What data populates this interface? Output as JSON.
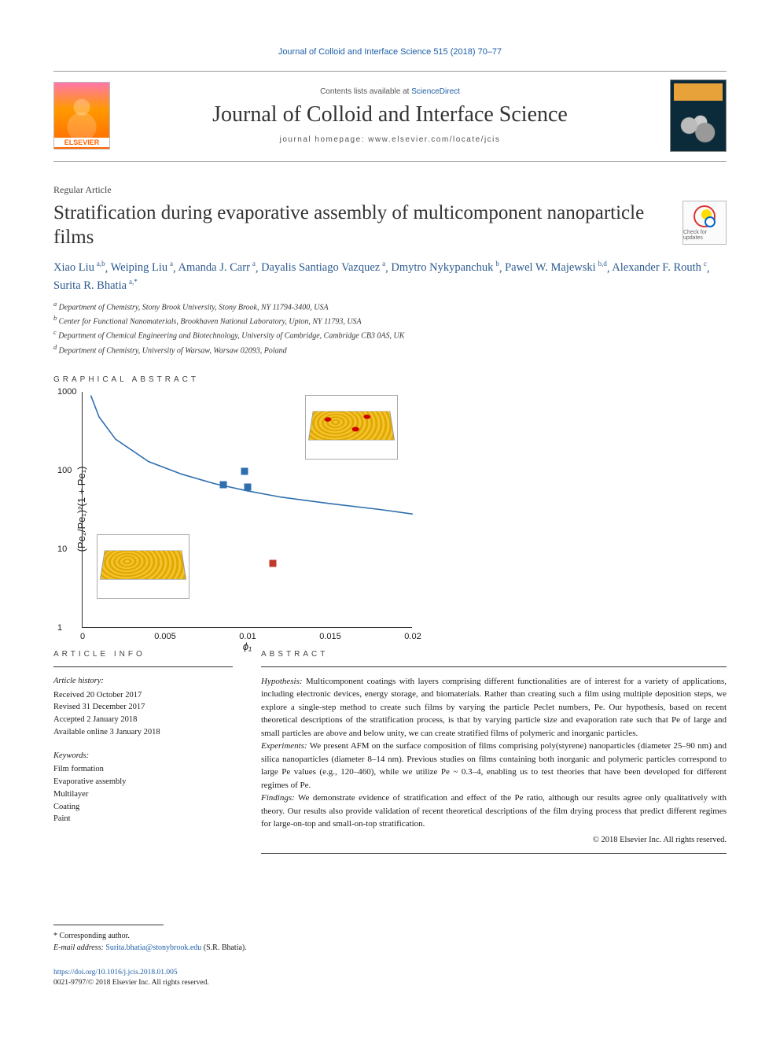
{
  "running_head": "Journal of Colloid and Interface Science 515 (2018) 70–77",
  "masthead": {
    "contents_prefix": "Contents lists available at ",
    "contents_link": "ScienceDirect",
    "journal_title": "Journal of Colloid and Interface Science",
    "homepage_prefix": "journal homepage: ",
    "homepage_url": "www.elsevier.com/locate/jcis",
    "publisher_word": "ELSEVIER"
  },
  "article_type": "Regular Article",
  "title": "Stratification during evaporative assembly of multicomponent nanoparticle films",
  "crossmark_label": "Check for updates",
  "authors_html_parts": [
    {
      "name": "Xiao Liu",
      "sup": "a,b"
    },
    {
      "name": "Weiping Liu",
      "sup": "a"
    },
    {
      "name": "Amanda J. Carr",
      "sup": "a"
    },
    {
      "name": "Dayalis Santiago Vazquez",
      "sup": "a"
    },
    {
      "name": "Dmytro Nykypanchuk",
      "sup": "b"
    },
    {
      "name": "Pawel W. Majewski",
      "sup": "b,d"
    },
    {
      "name": "Alexander F. Routh",
      "sup": "c"
    },
    {
      "name": "Surita R. Bhatia",
      "sup": "a,*",
      "last": true
    }
  ],
  "affiliations": [
    {
      "key": "a",
      "text": "Department of Chemistry, Stony Brook University, Stony Brook, NY 11794-3400, USA"
    },
    {
      "key": "b",
      "text": "Center for Functional Nanomaterials, Brookhaven National Laboratory, Upton, NY 11793, USA"
    },
    {
      "key": "c",
      "text": "Department of Chemical Engineering and Biotechnology, University of Cambridge, Cambridge CB3 0AS, UK"
    },
    {
      "key": "d",
      "text": "Department of Chemistry, University of Warsaw, Warsaw 02093, Poland"
    }
  ],
  "graphical_abstract": {
    "label": "GRAPHICAL ABSTRACT",
    "chart": {
      "type": "scatter-with-curve-log-y",
      "xlabel": "ϕ₁",
      "ylabel": "(Pe₂/Pe₁)²(1 + Pe₁)",
      "xlim": [
        0,
        0.02
      ],
      "ylim_log": [
        1,
        1000
      ],
      "xticks": [
        0,
        0.005,
        0.01,
        0.015,
        0.02
      ],
      "yticks": [
        1,
        10,
        100,
        1000
      ],
      "curve_color": "#2f6fb0",
      "curve_points": [
        {
          "x": 0.0005,
          "y": 900
        },
        {
          "x": 0.001,
          "y": 480
        },
        {
          "x": 0.002,
          "y": 250
        },
        {
          "x": 0.004,
          "y": 130
        },
        {
          "x": 0.006,
          "y": 90
        },
        {
          "x": 0.008,
          "y": 68
        },
        {
          "x": 0.01,
          "y": 55
        },
        {
          "x": 0.012,
          "y": 46
        },
        {
          "x": 0.015,
          "y": 38
        },
        {
          "x": 0.018,
          "y": 32
        },
        {
          "x": 0.02,
          "y": 28
        }
      ],
      "points_blue": {
        "color": "#2f6fb0",
        "marker": "square",
        "size": 9,
        "data": [
          {
            "x": 0.0085,
            "y": 65
          },
          {
            "x": 0.0098,
            "y": 95
          },
          {
            "x": 0.01,
            "y": 60
          }
        ]
      },
      "points_red": {
        "color": "#c0392b",
        "marker": "square",
        "size": 9,
        "data": [
          {
            "x": 0.0115,
            "y": 6.5
          }
        ]
      },
      "inset_top": {
        "pos": "top-right",
        "has_red_dots": true,
        "surface_color": "#f4c430",
        "dot_color": "#c0392b"
      },
      "inset_bottom": {
        "pos": "bottom-left",
        "has_red_dots": false,
        "surface_color": "#f4c430"
      },
      "axis_color": "#333333",
      "tick_fontsize": 11,
      "label_fontsize": 13,
      "background_color": "#ffffff"
    }
  },
  "article_info": {
    "label": "ARTICLE INFO",
    "history_head": "Article history:",
    "history": [
      "Received 20 October 2017",
      "Revised 31 December 2017",
      "Accepted 2 January 2018",
      "Available online 3 January 2018"
    ],
    "keywords_head": "Keywords:",
    "keywords": [
      "Film formation",
      "Evaporative assembly",
      "Multilayer",
      "Coating",
      "Paint"
    ]
  },
  "abstract": {
    "label": "ABSTRACT",
    "hypothesis_lead": "Hypothesis:",
    "hypothesis": " Multicomponent coatings with layers comprising different functionalities are of interest for a variety of applications, including electronic devices, energy storage, and biomaterials. Rather than creating such a film using multiple deposition steps, we explore a single-step method to create such films by varying the particle Peclet numbers, Pe. Our hypothesis, based on recent theoretical descriptions of the stratification process, is that by varying particle size and evaporation rate such that Pe of large and small particles are above and below unity, we can create stratified films of polymeric and inorganic particles.",
    "experiments_lead": "Experiments:",
    "experiments": " We present AFM on the surface composition of films comprising poly(styrene) nanoparticles (diameter 25–90 nm) and silica nanoparticles (diameter 8–14 nm). Previous studies on films containing both inorganic and polymeric particles correspond to large Pe values (e.g., 120–460), while we utilize Pe ~ 0.3–4, enabling us to test theories that have been developed for different regimes of Pe.",
    "findings_lead": "Findings:",
    "findings": " We demonstrate evidence of stratification and effect of the Pe ratio, although our results agree only qualitatively with theory. Our results also provide validation of recent theoretical descriptions of the film drying process that predict different regimes for large-on-top and small-on-top stratification.",
    "copyright": "© 2018 Elsevier Inc. All rights reserved."
  },
  "footer": {
    "corr_marker": "* Corresponding author.",
    "email_label": "E-mail address: ",
    "email": "Surita.bhatia@stonybrook.edu",
    "email_paren": " (S.R. Bhatia).",
    "doi": "https://doi.org/10.1016/j.jcis.2018.01.005",
    "issn_line": "0021-9797/© 2018 Elsevier Inc. All rights reserved."
  },
  "colors": {
    "link": "#1e5fa8",
    "author": "#2b5a8f",
    "text": "#1a1a1a",
    "rule": "#999999"
  }
}
